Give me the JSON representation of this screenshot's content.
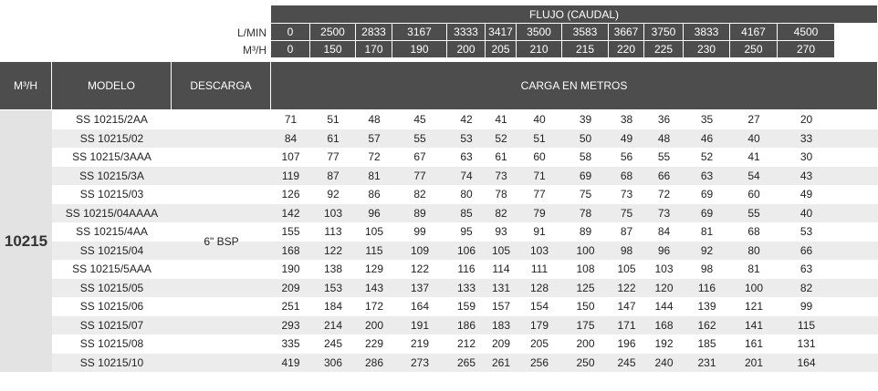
{
  "flow_header": "FLUJO (CAUDAL)",
  "lmin_label": "L/MIN",
  "m3h_label": "M³/H",
  "lmin": [
    0,
    2500,
    2833,
    3167,
    3333,
    3417,
    3500,
    3583,
    3667,
    3750,
    3833,
    4167,
    4500
  ],
  "m3h": [
    0,
    150,
    170,
    190,
    200,
    205,
    210,
    215,
    220,
    225,
    230,
    250,
    270
  ],
  "columns": [
    "M³/H",
    "MODELO",
    "DESCARGA",
    "CARGA EN METROS"
  ],
  "group": "10215",
  "descarga": "6\" BSP",
  "rows": [
    {
      "model": "SS 10215/2AA",
      "values": [
        71,
        51,
        48,
        45,
        42,
        41,
        40,
        39,
        38,
        36,
        35,
        27,
        20
      ]
    },
    {
      "model": "SS 10215/02",
      "values": [
        84,
        61,
        57,
        55,
        53,
        52,
        51,
        50,
        49,
        48,
        46,
        40,
        33
      ]
    },
    {
      "model": "SS 10215/3AAA",
      "values": [
        107,
        77,
        72,
        67,
        63,
        61,
        60,
        58,
        56,
        55,
        52,
        41,
        30
      ]
    },
    {
      "model": "SS 10215/3A",
      "values": [
        119,
        87,
        81,
        77,
        74,
        73,
        71,
        69,
        68,
        66,
        63,
        54,
        43
      ]
    },
    {
      "model": "SS 10215/03",
      "values": [
        126,
        92,
        86,
        82,
        80,
        78,
        77,
        75,
        73,
        72,
        69,
        60,
        49
      ]
    },
    {
      "model": "SS 10215/04AAAA",
      "values": [
        142,
        103,
        96,
        89,
        85,
        82,
        79,
        78,
        75,
        73,
        69,
        55,
        40
      ]
    },
    {
      "model": "SS 10215/4AA",
      "values": [
        155,
        113,
        105,
        99,
        95,
        93,
        91,
        89,
        87,
        84,
        81,
        68,
        53
      ]
    },
    {
      "model": "SS 10215/04",
      "values": [
        168,
        122,
        115,
        109,
        106,
        105,
        103,
        100,
        98,
        96,
        92,
        80,
        66
      ]
    },
    {
      "model": "SS 10215/5AAA",
      "values": [
        190,
        138,
        129,
        122,
        116,
        114,
        111,
        108,
        105,
        103,
        98,
        81,
        63
      ]
    },
    {
      "model": "SS 10215/05",
      "values": [
        209,
        153,
        143,
        137,
        133,
        131,
        128,
        125,
        122,
        120,
        116,
        100,
        82
      ]
    },
    {
      "model": "SS 10215/06",
      "values": [
        251,
        184,
        172,
        164,
        159,
        157,
        154,
        150,
        147,
        144,
        139,
        121,
        99
      ]
    },
    {
      "model": "SS 10215/07",
      "values": [
        293,
        214,
        200,
        191,
        186,
        183,
        179,
        175,
        171,
        168,
        162,
        141,
        115
      ]
    },
    {
      "model": "SS 10215/08",
      "values": [
        335,
        245,
        229,
        219,
        212,
        209,
        205,
        200,
        196,
        192,
        185,
        161,
        131
      ]
    },
    {
      "model": "SS 10215/10",
      "values": [
        419,
        306,
        286,
        273,
        265,
        261,
        256,
        250,
        245,
        240,
        231,
        201,
        164
      ]
    }
  ]
}
